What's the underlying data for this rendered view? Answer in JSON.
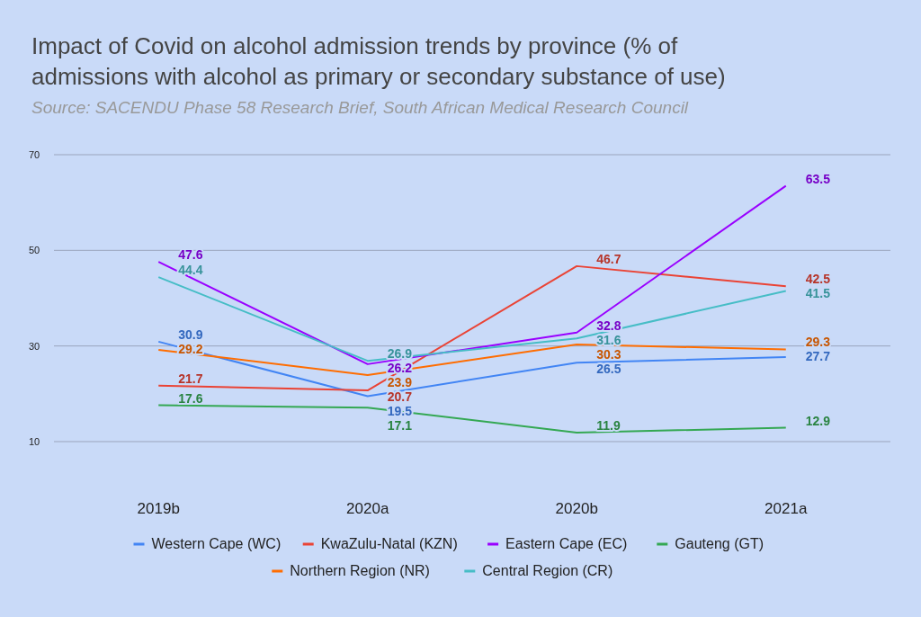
{
  "chart_data": {
    "type": "line",
    "title": "Impact of Covid on alcohol admission trends by province (% of admissions with alcohol as primary or secondary substance of use)",
    "subtitle": "Source: SACENDU Phase 58 Research Brief, South African Medical Research Council",
    "categories": [
      "2019b",
      "2020a",
      "2020b",
      "2021a"
    ],
    "series": [
      {
        "name": "Western Cape (WC)",
        "color": "#4285f4",
        "values": [
          30.9,
          19.5,
          26.5,
          27.7
        ]
      },
      {
        "name": "KwaZulu-Natal (KZN)",
        "color": "#ea4335",
        "values": [
          21.7,
          20.7,
          46.7,
          42.5
        ]
      },
      {
        "name": "Eastern Cape (EC)",
        "color": "#9900ff",
        "values": [
          47.6,
          26.2,
          32.8,
          63.5
        ]
      },
      {
        "name": "Gauteng (GT)",
        "color": "#34a853",
        "values": [
          17.6,
          17.1,
          11.9,
          12.9
        ]
      },
      {
        "name": "Northern Region (NR)",
        "color": "#ff6d01",
        "values": [
          29.2,
          23.9,
          30.3,
          29.3
        ]
      },
      {
        "name": "Central Region (CR)",
        "color": "#46bdc6",
        "values": [
          44.4,
          26.9,
          31.6,
          41.5
        ]
      }
    ],
    "ylim": [
      10,
      70
    ],
    "yticks": [
      10,
      30,
      50,
      70
    ],
    "grid": "y",
    "legend": "bottom",
    "data_labels": true,
    "marker": "none",
    "line_style": "solid"
  }
}
